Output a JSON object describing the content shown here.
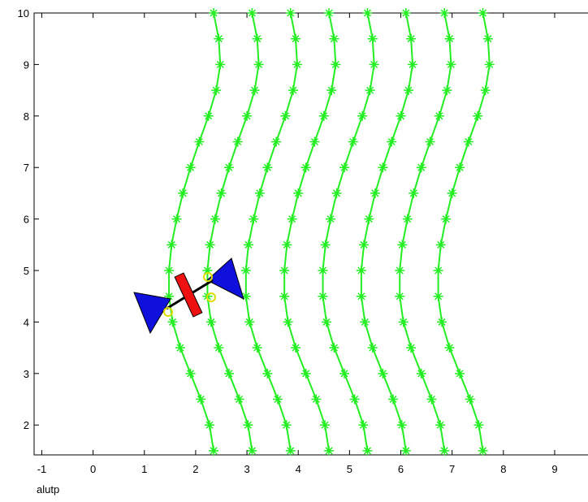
{
  "chart_data": {
    "type": "scatter",
    "xlabel": "alutp",
    "xlim": [
      -1.15,
      9.65
    ],
    "ylim": [
      1.42,
      10
    ],
    "xticks": [
      -1,
      0,
      1,
      2,
      3,
      4,
      5,
      6,
      7,
      8,
      9
    ],
    "yticks": [
      2,
      3,
      4,
      5,
      6,
      7,
      8,
      9,
      10
    ],
    "series": [
      {
        "color": "#22ee22",
        "x": [
          2.35,
          2.27,
          2.1,
          1.9,
          1.7,
          1.55,
          1.48,
          1.48,
          1.53,
          1.63,
          1.75,
          1.9,
          2.07,
          2.25,
          2.4,
          2.48,
          2.45,
          2.35
        ],
        "values": [
          1.5,
          2,
          2.5,
          3,
          3.5,
          4,
          4.5,
          5,
          5.5,
          6,
          6.5,
          7,
          7.5,
          8,
          8.5,
          9,
          9.5,
          10
        ]
      },
      {
        "color": "#22ee22",
        "x": [
          3.1,
          3.02,
          2.85,
          2.65,
          2.45,
          2.3,
          2.23,
          2.23,
          2.28,
          2.38,
          2.5,
          2.65,
          2.82,
          3.0,
          3.15,
          3.23,
          3.2,
          3.1
        ],
        "values": [
          1.5,
          2,
          2.5,
          3,
          3.5,
          4,
          4.5,
          5,
          5.5,
          6,
          6.5,
          7,
          7.5,
          8,
          8.5,
          9,
          9.5,
          10
        ]
      },
      {
        "color": "#22ee22",
        "x": [
          3.85,
          3.77,
          3.6,
          3.4,
          3.2,
          3.05,
          2.98,
          2.98,
          3.03,
          3.13,
          3.25,
          3.4,
          3.57,
          3.75,
          3.9,
          3.98,
          3.95,
          3.85
        ],
        "values": [
          1.5,
          2,
          2.5,
          3,
          3.5,
          4,
          4.5,
          5,
          5.5,
          6,
          6.5,
          7,
          7.5,
          8,
          8.5,
          9,
          9.5,
          10
        ]
      },
      {
        "color": "#22ee22",
        "x": [
          4.6,
          4.52,
          4.35,
          4.15,
          3.95,
          3.8,
          3.73,
          3.73,
          3.78,
          3.88,
          4.0,
          4.15,
          4.32,
          4.5,
          4.65,
          4.73,
          4.7,
          4.6
        ],
        "values": [
          1.5,
          2,
          2.5,
          3,
          3.5,
          4,
          4.5,
          5,
          5.5,
          6,
          6.5,
          7,
          7.5,
          8,
          8.5,
          9,
          9.5,
          10
        ]
      },
      {
        "color": "#22ee22",
        "x": [
          5.35,
          5.27,
          5.1,
          4.9,
          4.7,
          4.55,
          4.48,
          4.48,
          4.53,
          4.63,
          4.75,
          4.9,
          5.07,
          5.25,
          5.4,
          5.48,
          5.45,
          5.35
        ],
        "values": [
          1.5,
          2,
          2.5,
          3,
          3.5,
          4,
          4.5,
          5,
          5.5,
          6,
          6.5,
          7,
          7.5,
          8,
          8.5,
          9,
          9.5,
          10
        ]
      },
      {
        "color": "#22ee22",
        "x": [
          6.1,
          6.02,
          5.85,
          5.65,
          5.45,
          5.3,
          5.23,
          5.23,
          5.28,
          5.38,
          5.5,
          5.65,
          5.82,
          6.0,
          6.15,
          6.23,
          6.2,
          6.1
        ],
        "values": [
          1.5,
          2,
          2.5,
          3,
          3.5,
          4,
          4.5,
          5,
          5.5,
          6,
          6.5,
          7,
          7.5,
          8,
          8.5,
          9,
          9.5,
          10
        ]
      },
      {
        "color": "#22ee22",
        "x": [
          6.85,
          6.77,
          6.6,
          6.4,
          6.2,
          6.05,
          5.98,
          5.98,
          6.03,
          6.13,
          6.25,
          6.4,
          6.57,
          6.75,
          6.9,
          6.98,
          6.95,
          6.85
        ],
        "values": [
          1.5,
          2,
          2.5,
          3,
          3.5,
          4,
          4.5,
          5,
          5.5,
          6,
          6.5,
          7,
          7.5,
          8,
          8.5,
          9,
          9.5,
          10
        ]
      },
      {
        "color": "#22ee22",
        "x": [
          7.6,
          7.52,
          7.35,
          7.15,
          6.95,
          6.8,
          6.73,
          6.73,
          6.78,
          6.88,
          7.0,
          7.15,
          7.32,
          7.5,
          7.65,
          7.73,
          7.7,
          7.6
        ],
        "values": [
          1.5,
          2,
          2.5,
          3,
          3.5,
          4,
          4.5,
          5,
          5.5,
          6,
          6.5,
          7,
          7.5,
          8,
          8.5,
          9,
          9.5,
          10
        ]
      }
    ]
  }
}
